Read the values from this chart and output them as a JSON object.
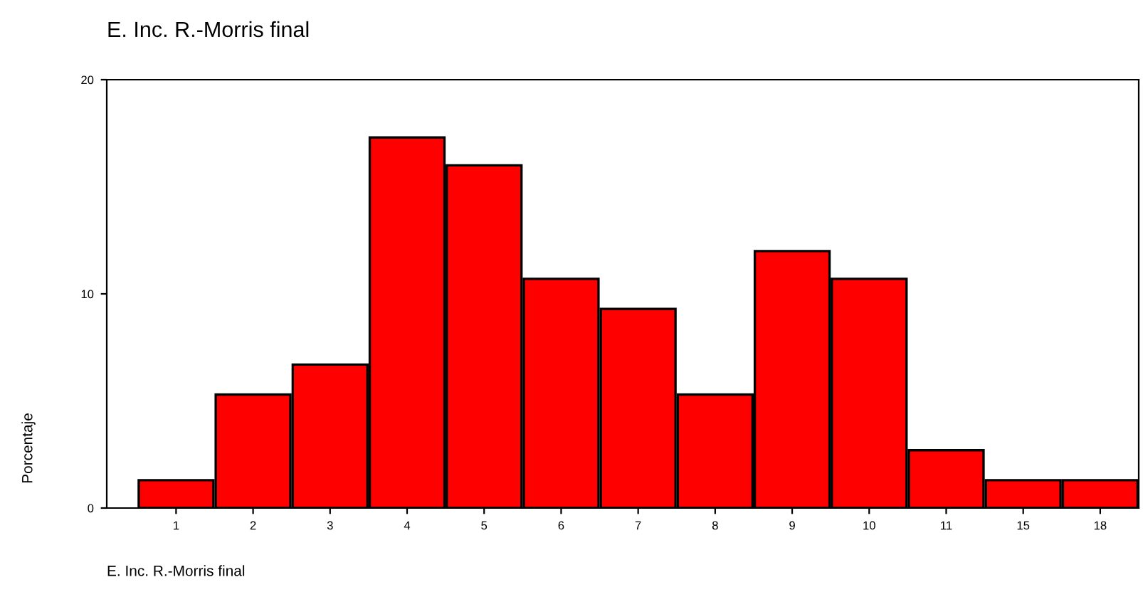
{
  "chart_data": {
    "type": "bar",
    "title": "E. Inc. R.-Morris final",
    "xlabel": "E. Inc. R.-Morris final",
    "ylabel": "Porcentaje",
    "categories": [
      "1",
      "2",
      "3",
      "4",
      "5",
      "6",
      "7",
      "8",
      "9",
      "10",
      "11",
      "15",
      "18"
    ],
    "values": [
      1.3,
      5.3,
      6.7,
      17.3,
      16.0,
      10.7,
      9.3,
      5.3,
      12.0,
      10.7,
      2.7,
      1.3,
      1.3
    ],
    "color": "#ff0000",
    "ylim": [
      0,
      20
    ],
    "yticks": [
      0,
      10,
      20
    ],
    "grid": false,
    "legend": false
  }
}
